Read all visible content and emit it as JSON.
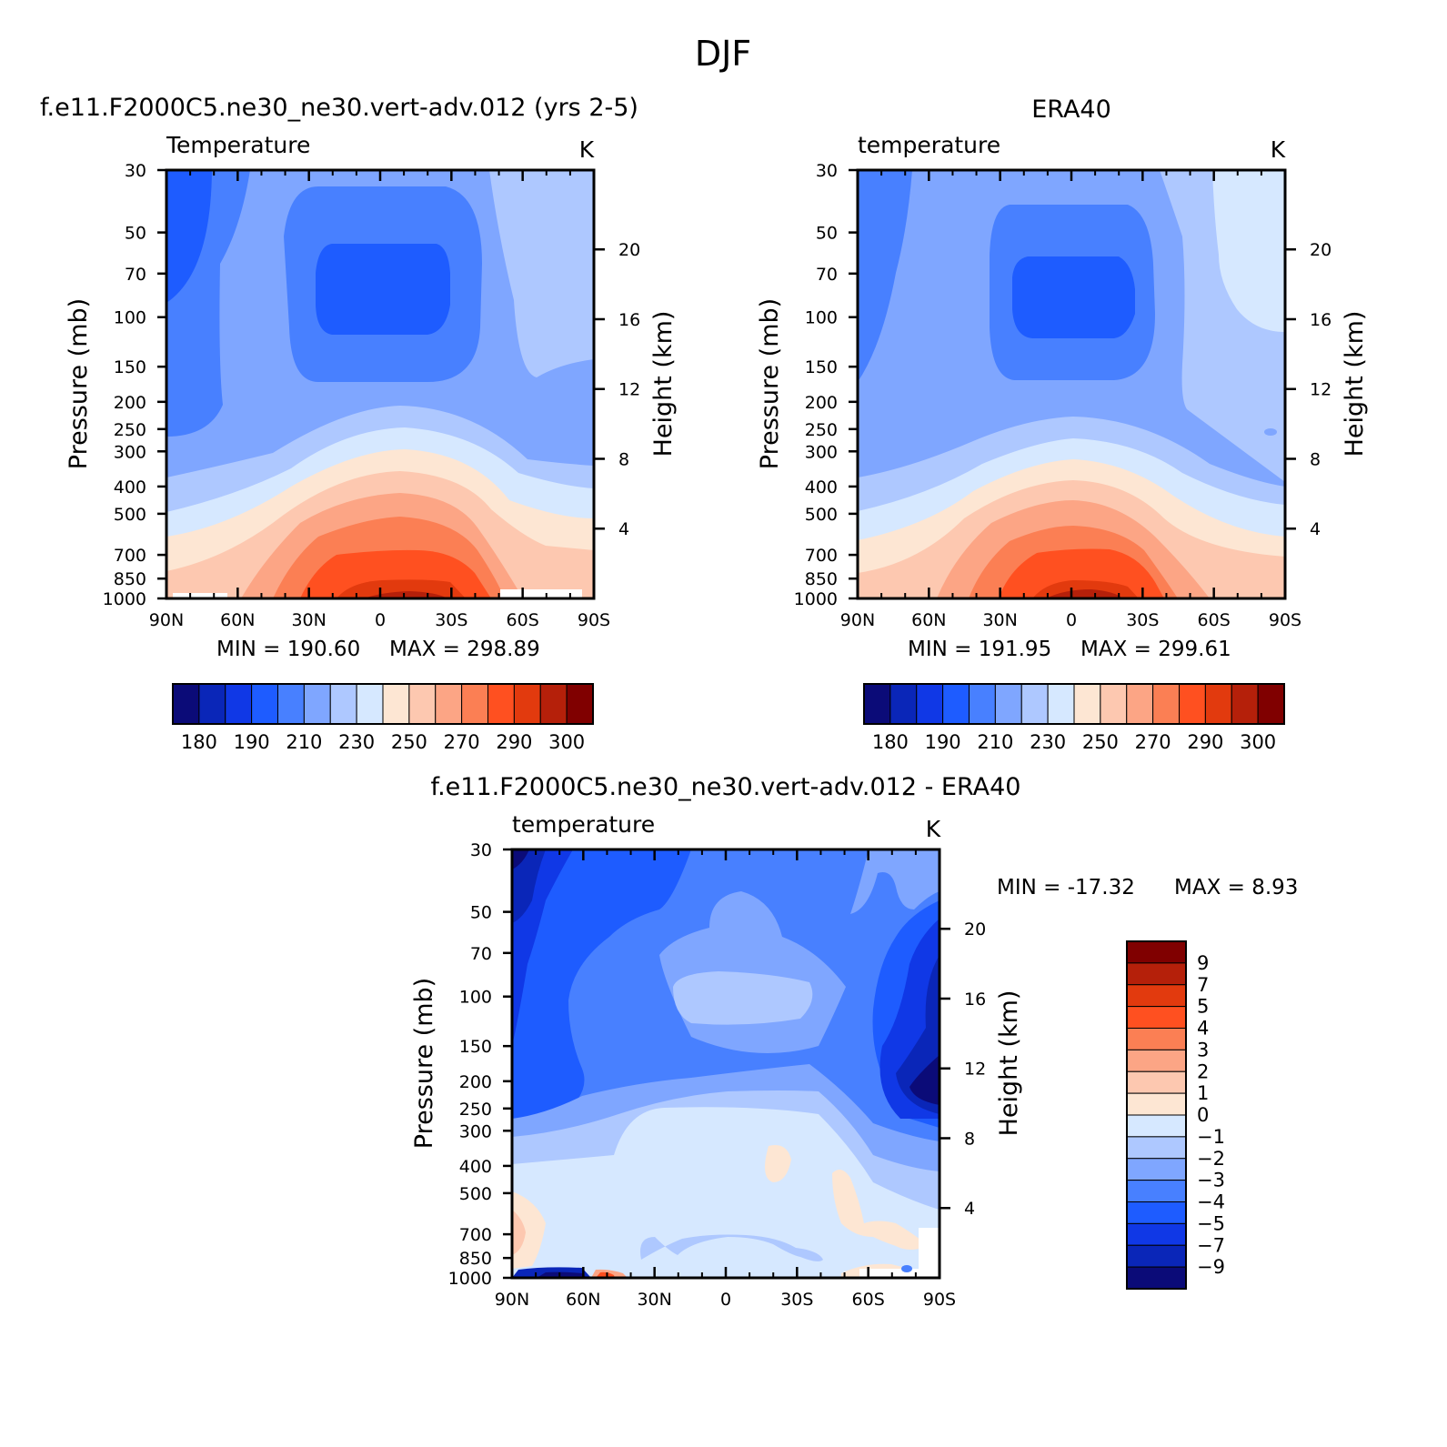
{
  "figure_title": "DJF",
  "chart_data": [
    {
      "type": "heatmap",
      "id": "model",
      "title": "f.e11.F2000C5.ne30_ne30.vert-adv.012 (yrs 2-5)",
      "subtitle": "Temperature",
      "units": "K",
      "xlabel": "",
      "ylabel": "Pressure (mb)",
      "ylabel_right": "Height (km)",
      "x_ticks": [
        "90N",
        "60N",
        "30N",
        "0",
        "30S",
        "60S",
        "90S"
      ],
      "x_values": [
        90,
        60,
        30,
        0,
        -30,
        -60,
        -90
      ],
      "y_ticks": [
        30,
        50,
        70,
        100,
        150,
        200,
        250,
        300,
        400,
        500,
        700,
        850,
        1000
      ],
      "y_scale": "log",
      "right_ticks": [
        4,
        8,
        12,
        16,
        20
      ],
      "min_label": "MIN = 190.60",
      "max_label": "MAX = 298.89",
      "min": 190.6,
      "max": 298.89,
      "colorbar": {
        "orientation": "horizontal",
        "levels": [
          180,
          185,
          190,
          200,
          210,
          220,
          230,
          240,
          250,
          260,
          270,
          280,
          290,
          295,
          300
        ],
        "tick_labels": [
          "180",
          "190",
          "210",
          "230",
          "250",
          "270",
          "290",
          "300"
        ],
        "colors": [
          "#0b0b78",
          "#0a26b8",
          "#1038e6",
          "#1e5cff",
          "#4880ff",
          "#7fa6ff",
          "#aec8ff",
          "#d6e8ff",
          "#fde6d3",
          "#fdc8b0",
          "#fca585",
          "#fb7f54",
          "#ff5020",
          "#e23a0e",
          "#b5200a",
          "#800000"
        ]
      }
    },
    {
      "type": "heatmap",
      "id": "obs",
      "title": "ERA40",
      "subtitle": "temperature",
      "units": "K",
      "xlabel": "",
      "ylabel": "Pressure (mb)",
      "ylabel_right": "Height (km)",
      "x_ticks": [
        "90N",
        "60N",
        "30N",
        "0",
        "30S",
        "60S",
        "90S"
      ],
      "x_values": [
        90,
        60,
        30,
        0,
        -30,
        -60,
        -90
      ],
      "y_ticks": [
        30,
        50,
        70,
        100,
        150,
        200,
        250,
        300,
        400,
        500,
        700,
        850,
        1000
      ],
      "y_scale": "log",
      "right_ticks": [
        4,
        8,
        12,
        16,
        20
      ],
      "min_label": "MIN = 191.95",
      "max_label": "MAX = 299.61",
      "min": 191.95,
      "max": 299.61,
      "colorbar": {
        "orientation": "horizontal",
        "levels": [
          180,
          185,
          190,
          200,
          210,
          220,
          230,
          240,
          250,
          260,
          270,
          280,
          290,
          295,
          300
        ],
        "tick_labels": [
          "180",
          "190",
          "210",
          "230",
          "250",
          "270",
          "290",
          "300"
        ],
        "colors": [
          "#0b0b78",
          "#0a26b8",
          "#1038e6",
          "#1e5cff",
          "#4880ff",
          "#7fa6ff",
          "#aec8ff",
          "#d6e8ff",
          "#fde6d3",
          "#fdc8b0",
          "#fca585",
          "#fb7f54",
          "#ff5020",
          "#e23a0e",
          "#b5200a",
          "#800000"
        ]
      }
    },
    {
      "type": "heatmap",
      "id": "diff",
      "title": "f.e11.F2000C5.ne30_ne30.vert-adv.012 - ERA40",
      "subtitle": "temperature",
      "units": "K",
      "xlabel": "",
      "ylabel": "Pressure (mb)",
      "ylabel_right": "Height (km)",
      "x_ticks": [
        "90N",
        "60N",
        "30N",
        "0",
        "30S",
        "60S",
        "90S"
      ],
      "x_values": [
        90,
        60,
        30,
        0,
        -30,
        -60,
        -90
      ],
      "y_ticks": [
        30,
        50,
        70,
        100,
        150,
        200,
        250,
        300,
        400,
        500,
        700,
        850,
        1000
      ],
      "y_scale": "log",
      "right_ticks": [
        4,
        8,
        12,
        16,
        20
      ],
      "min_label": "MIN = -17.32",
      "max_label": "MAX = 8.93",
      "min": -17.32,
      "max": 8.93,
      "colorbar": {
        "orientation": "vertical",
        "levels": [
          9,
          7,
          5,
          4,
          3,
          2,
          1,
          0,
          -1,
          -2,
          -3,
          -4,
          -5,
          -7,
          -9
        ],
        "tick_labels": [
          "9",
          "7",
          "5",
          "4",
          "3",
          "2",
          "1",
          "0",
          "-1",
          "-2",
          "-3",
          "-4",
          "-5",
          "-7",
          "-9"
        ],
        "colors": [
          "#800000",
          "#b5200a",
          "#e23a0e",
          "#ff5020",
          "#fb7f54",
          "#fca585",
          "#fdc8b0",
          "#fde6d3",
          "#d6e8ff",
          "#aec8ff",
          "#7fa6ff",
          "#4880ff",
          "#1e5cff",
          "#1038e6",
          "#0a26b8",
          "#0b0b78"
        ]
      }
    }
  ]
}
